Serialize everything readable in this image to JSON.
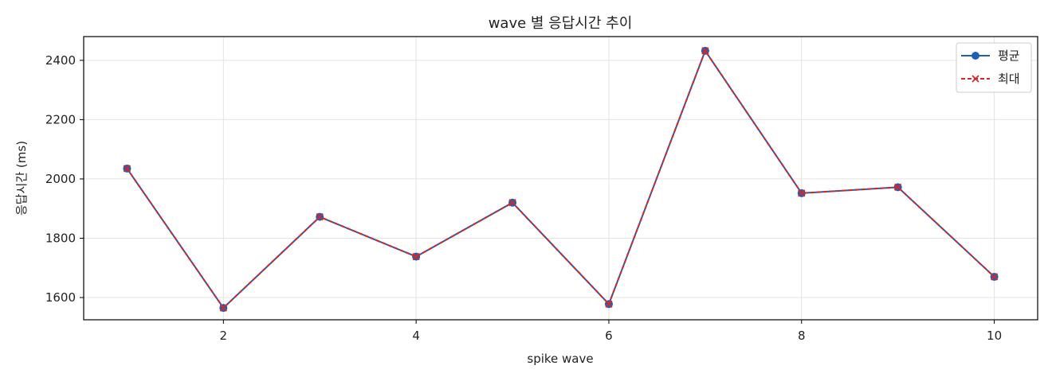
{
  "chart_data": {
    "type": "line",
    "title": "wave 별 응답시간 추이",
    "xlabel": "spike wave",
    "ylabel": "응답시간 (ms)",
    "x": [
      1,
      2,
      3,
      4,
      5,
      6,
      7,
      8,
      9,
      10
    ],
    "xlim": [
      0.55,
      10.45
    ],
    "ylim": [
      1525,
      2480
    ],
    "xticks": [
      2,
      4,
      6,
      8,
      10
    ],
    "yticks": [
      1600,
      1800,
      2000,
      2200,
      2400
    ],
    "grid": true,
    "legend_position": "top-right",
    "series": [
      {
        "name": "평균",
        "values": [
          2035,
          1565,
          1872,
          1738,
          1920,
          1578,
          2432,
          1952,
          1972,
          1670
        ],
        "color": "#1f5fb4",
        "marker": "circle",
        "line_style": "solid"
      },
      {
        "name": "최대",
        "values": [
          2035,
          1565,
          1872,
          1738,
          1920,
          1578,
          2432,
          1952,
          1972,
          1670
        ],
        "color": "#d62728",
        "marker": "x",
        "line_style": "dashed"
      }
    ]
  }
}
